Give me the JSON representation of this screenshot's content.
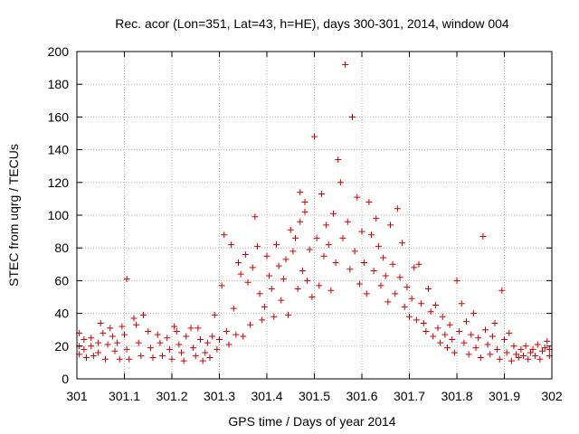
{
  "chart_data": {
    "type": "scatter",
    "title": "Rec. acor (Lon=351, Lat=43, h=HE), days 300-301, 2014, window 004",
    "xlabel": "GPS time / Days of year 2014",
    "ylabel": "STEC from uqrg / TECUs",
    "xlim": [
      301,
      302
    ],
    "ylim": [
      0,
      200
    ],
    "x_ticks": [
      301,
      301.1,
      301.2,
      301.3,
      301.4,
      301.5,
      301.6,
      301.7,
      301.8,
      301.9,
      302
    ],
    "x_tick_labels": [
      "301",
      "301.1",
      "301.2",
      "301.3",
      "301.4",
      "301.5",
      "301.6",
      "301.7",
      "301.8",
      "301.9",
      "302"
    ],
    "y_ticks": [
      0,
      20,
      40,
      60,
      80,
      100,
      120,
      140,
      160,
      180,
      200
    ],
    "y_tick_labels": [
      "0",
      "20",
      "40",
      "60",
      "80",
      "100",
      "120",
      "140",
      "160",
      "180",
      "200"
    ],
    "grid": true,
    "marker": "+",
    "colors": {
      "series": "#cc0000",
      "grid": "#b0b0b0",
      "axes": "#000000"
    },
    "series": [
      {
        "name": "STEC",
        "points": [
          [
            301.005,
            28
          ],
          [
            301.005,
            20
          ],
          [
            301.005,
            15
          ],
          [
            301.015,
            24
          ],
          [
            301.015,
            18
          ],
          [
            301.02,
            13
          ],
          [
            301.03,
            25
          ],
          [
            301.03,
            20
          ],
          [
            301.035,
            14
          ],
          [
            301.045,
            22
          ],
          [
            301.045,
            16
          ],
          [
            301.05,
            34
          ],
          [
            301.055,
            28
          ],
          [
            301.06,
            12
          ],
          [
            301.065,
            21
          ],
          [
            301.07,
            31
          ],
          [
            301.075,
            26
          ],
          [
            301.08,
            17
          ],
          [
            301.085,
            22
          ],
          [
            301.09,
            12
          ],
          [
            301.095,
            32
          ],
          [
            301.1,
            27
          ],
          [
            301.105,
            61
          ],
          [
            301.105,
            18
          ],
          [
            301.11,
            12
          ],
          [
            301.12,
            37
          ],
          [
            301.125,
            33
          ],
          [
            301.13,
            22
          ],
          [
            301.135,
            14
          ],
          [
            301.14,
            39
          ],
          [
            301.15,
            29
          ],
          [
            301.155,
            19
          ],
          [
            301.16,
            13
          ],
          [
            301.17,
            27
          ],
          [
            301.175,
            22
          ],
          [
            301.18,
            14
          ],
          [
            301.19,
            25
          ],
          [
            301.195,
            18
          ],
          [
            301.2,
            12
          ],
          [
            301.205,
            32
          ],
          [
            301.21,
            29
          ],
          [
            301.215,
            21
          ],
          [
            301.22,
            16
          ],
          [
            301.225,
            11
          ],
          [
            301.23,
            26
          ],
          [
            301.24,
            31
          ],
          [
            301.245,
            19
          ],
          [
            301.25,
            14
          ],
          [
            301.255,
            31
          ],
          [
            301.26,
            24
          ],
          [
            301.265,
            11
          ],
          [
            301.27,
            16
          ],
          [
            301.275,
            22
          ],
          [
            301.28,
            13
          ],
          [
            301.285,
            26
          ],
          [
            301.29,
            39
          ],
          [
            301.295,
            18
          ],
          [
            301.3,
            24
          ],
          [
            301.305,
            57
          ],
          [
            301.31,
            88
          ],
          [
            301.315,
            29
          ],
          [
            301.32,
            21
          ],
          [
            301.325,
            82
          ],
          [
            301.33,
            43
          ],
          [
            301.335,
            27
          ],
          [
            301.34,
            71
          ],
          [
            301.345,
            64
          ],
          [
            301.35,
            26
          ],
          [
            301.355,
            76
          ],
          [
            301.36,
            59
          ],
          [
            301.365,
            33
          ],
          [
            301.37,
            68
          ],
          [
            301.375,
            99
          ],
          [
            301.38,
            81
          ],
          [
            301.385,
            52
          ],
          [
            301.39,
            36
          ],
          [
            301.395,
            44
          ],
          [
            301.4,
            75
          ],
          [
            301.405,
            63
          ],
          [
            301.41,
            55
          ],
          [
            301.415,
            38
          ],
          [
            301.42,
            82
          ],
          [
            301.425,
            69
          ],
          [
            301.43,
            48
          ],
          [
            301.435,
            61
          ],
          [
            301.44,
            73
          ],
          [
            301.445,
            39
          ],
          [
            301.45,
            91
          ],
          [
            301.455,
            78
          ],
          [
            301.46,
            86
          ],
          [
            301.465,
            55
          ],
          [
            301.47,
            114
          ],
          [
            301.47,
            96
          ],
          [
            301.475,
            66
          ],
          [
            301.48,
            108
          ],
          [
            301.48,
            102
          ],
          [
            301.485,
            60
          ],
          [
            301.49,
            79
          ],
          [
            301.495,
            50
          ],
          [
            301.5,
            148
          ],
          [
            301.505,
            86
          ],
          [
            301.51,
            57
          ],
          [
            301.515,
            113
          ],
          [
            301.52,
            75
          ],
          [
            301.525,
            94
          ],
          [
            301.53,
            82
          ],
          [
            301.535,
            54
          ],
          [
            301.54,
            101
          ],
          [
            301.545,
            71
          ],
          [
            301.55,
            134
          ],
          [
            301.555,
            120
          ],
          [
            301.56,
            86
          ],
          [
            301.565,
            192
          ],
          [
            301.57,
            96
          ],
          [
            301.575,
            67
          ],
          [
            301.58,
            160
          ],
          [
            301.585,
            78
          ],
          [
            301.59,
            111
          ],
          [
            301.595,
            58
          ],
          [
            301.6,
            90
          ],
          [
            301.605,
            71
          ],
          [
            301.61,
            52
          ],
          [
            301.615,
            108
          ],
          [
            301.62,
            88
          ],
          [
            301.625,
            66
          ],
          [
            301.63,
            98
          ],
          [
            301.635,
            81
          ],
          [
            301.64,
            57
          ],
          [
            301.645,
            74
          ],
          [
            301.65,
            63
          ],
          [
            301.655,
            47
          ],
          [
            301.66,
            94
          ],
          [
            301.665,
            70
          ],
          [
            301.67,
            52
          ],
          [
            301.675,
            104
          ],
          [
            301.68,
            62
          ],
          [
            301.685,
            83
          ],
          [
            301.69,
            44
          ],
          [
            301.695,
            56
          ],
          [
            301.7,
            38
          ],
          [
            301.705,
            49
          ],
          [
            301.71,
            68
          ],
          [
            301.715,
            36
          ],
          [
            301.72,
            70
          ],
          [
            301.725,
            46
          ],
          [
            301.73,
            34
          ],
          [
            301.735,
            29
          ],
          [
            301.74,
            55
          ],
          [
            301.745,
            41
          ],
          [
            301.75,
            26
          ],
          [
            301.755,
            45
          ],
          [
            301.76,
            31
          ],
          [
            301.765,
            22
          ],
          [
            301.77,
            38
          ],
          [
            301.775,
            27
          ],
          [
            301.78,
            19
          ],
          [
            301.785,
            33
          ],
          [
            301.79,
            24
          ],
          [
            301.795,
            16
          ],
          [
            301.8,
            60
          ],
          [
            301.805,
            29
          ],
          [
            301.81,
            46
          ],
          [
            301.815,
            22
          ],
          [
            301.82,
            35
          ],
          [
            301.825,
            15
          ],
          [
            301.83,
            27
          ],
          [
            301.835,
            40
          ],
          [
            301.84,
            19
          ],
          [
            301.845,
            25
          ],
          [
            301.85,
            13
          ],
          [
            301.855,
            87
          ],
          [
            301.86,
            30
          ],
          [
            301.865,
            21
          ],
          [
            301.87,
            15
          ],
          [
            301.875,
            26
          ],
          [
            301.88,
            34
          ],
          [
            301.885,
            18
          ],
          [
            301.89,
            12
          ],
          [
            301.895,
            54
          ],
          [
            301.9,
            24
          ],
          [
            301.905,
            16
          ],
          [
            301.91,
            28
          ],
          [
            301.915,
            11
          ],
          [
            301.92,
            20
          ],
          [
            301.925,
            15
          ],
          [
            301.93,
            13
          ],
          [
            301.935,
            18
          ],
          [
            301.94,
            14
          ],
          [
            301.945,
            20
          ],
          [
            301.95,
            12
          ],
          [
            301.955,
            16
          ],
          [
            301.96,
            18
          ],
          [
            301.965,
            14
          ],
          [
            301.97,
            21
          ],
          [
            301.975,
            12
          ],
          [
            301.98,
            17
          ],
          [
            301.985,
            19
          ],
          [
            301.99,
            23
          ],
          [
            301.995,
            14
          ],
          [
            301.995,
            18
          ]
        ]
      }
    ]
  }
}
